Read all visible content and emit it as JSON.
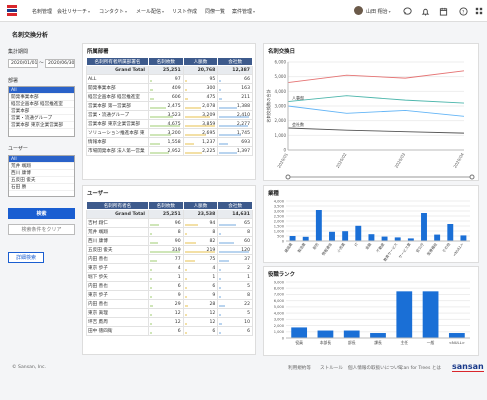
{
  "nav": {
    "items": [
      {
        "label": "名刺管理",
        "dropdown": false
      },
      {
        "label": "会社リサーチ",
        "dropdown": true
      },
      {
        "label": "コンタクト",
        "dropdown": true
      },
      {
        "label": "メール配信",
        "dropdown": true
      },
      {
        "label": "リスト作成",
        "dropdown": false
      },
      {
        "label": "同僚一覧",
        "dropdown": false
      },
      {
        "label": "案件管理",
        "dropdown": true
      }
    ],
    "user_name": "山田 翔治",
    "icons": [
      "chat-icon",
      "bell-icon",
      "calendar-icon",
      "help-icon",
      "grid-icon"
    ]
  },
  "page_title": "名刺交換分析",
  "sidebar": {
    "period_label": "集計期間",
    "date_from": "2020/01/01",
    "date_sep": "〜",
    "date_to": "2020/06/30",
    "dept_label": "部署",
    "dept_items": [
      {
        "label": "All",
        "selected": true
      },
      {
        "label": "開発事業本部",
        "selected": false
      },
      {
        "label": "経営企画本部 経営推進室",
        "selected": false
      },
      {
        "label": "営業本部",
        "selected": false
      },
      {
        "label": "営業・流通グループ",
        "selected": false
      },
      {
        "label": "営業本部 東京企業営業部",
        "selected": false
      }
    ],
    "user_label": "ユーザー",
    "user_items": [
      {
        "label": "All",
        "selected": true
      },
      {
        "label": "荒井 颯翔",
        "selected": false
      },
      {
        "label": "西川 康博",
        "selected": false
      },
      {
        "label": "五反田 俊夫",
        "selected": false
      },
      {
        "label": "石田 勝",
        "selected": false
      }
    ],
    "search_btn": "検索",
    "clear_btn": "検索条件をクリア",
    "detail_btn": "詳細検索"
  },
  "dept_table": {
    "title": "所属部署",
    "columns": [
      "名刺所有者所属部署名",
      "名刺枚数",
      "人脈数",
      "会社数"
    ],
    "total": {
      "name": "Grand Total",
      "cards": "25,251",
      "people": "20,768",
      "companies": "12,387"
    },
    "rows": [
      {
        "name": "ALL",
        "cards": "97",
        "people": "95",
        "companies": "66"
      },
      {
        "name": "開発事業本部",
        "cards": "409",
        "people": "300",
        "companies": "163"
      },
      {
        "name": "経営企画本部 経営推進室",
        "cards": "606",
        "people": "475",
        "companies": "211"
      },
      {
        "name": "営業本部 第一営業部",
        "cards": "2,475",
        "people": "2,078",
        "companies": "1,388"
      },
      {
        "name": "営業・流通グループ",
        "cards": "3,523",
        "people": "3,209",
        "companies": "2,410"
      },
      {
        "name": "営業本部 東京企業営業部",
        "cards": "4,675",
        "people": "3,859",
        "companies": "2,277"
      },
      {
        "name": "ソリューション推進本部 東",
        "cards": "3,200",
        "people": "2,695",
        "companies": "1,745"
      },
      {
        "name": "情報本部",
        "cards": "1,558",
        "people": "1,237",
        "companies": "693"
      },
      {
        "name": "市場開発本部 法人第一営業",
        "cards": "2,952",
        "people": "2,225",
        "companies": "1,397"
      }
    ]
  },
  "user_table": {
    "title": "ユーザー",
    "columns": [
      "名刺所有者名",
      "名刺枚数",
      "人脈数",
      "会社数"
    ],
    "total": {
      "name": "Grand Total",
      "cards": "25,251",
      "people": "23,538",
      "companies": "14,631"
    },
    "rows": [
      {
        "name": "吉村 翔仁",
        "cards": "96",
        "people": "94",
        "companies": "65"
      },
      {
        "name": "荒井 颯翔",
        "cards": "8",
        "people": "8",
        "companies": "8"
      },
      {
        "name": "西川 康博",
        "cards": "90",
        "people": "82",
        "companies": "60"
      },
      {
        "name": "五反田 俊夫",
        "cards": "319",
        "people": "219",
        "companies": "120"
      },
      {
        "name": "内田 善也",
        "cards": "77",
        "people": "75",
        "companies": "37"
      },
      {
        "name": "東京 歩子",
        "cards": "4",
        "people": "4",
        "companies": "2"
      },
      {
        "name": "堀下 歩矢",
        "cards": "1",
        "people": "1",
        "companies": "1"
      },
      {
        "name": "内田 善也",
        "cards": "6",
        "people": "6",
        "companies": "5"
      },
      {
        "name": "東京 歩子",
        "cards": "9",
        "people": "9",
        "companies": "8"
      },
      {
        "name": "内田 善也",
        "cards": "29",
        "people": "28",
        "companies": "22"
      },
      {
        "name": "東京 眞理",
        "cards": "12",
        "people": "12",
        "companies": "5"
      },
      {
        "name": "坪吉 鷹周",
        "cards": "12",
        "people": "12",
        "companies": "10"
      },
      {
        "name": "田中 徳四衛",
        "cards": "6",
        "people": "6",
        "companies": "6"
      }
    ]
  },
  "panel_titles": {
    "line": "名刺交換日",
    "industry": "業種",
    "rank": "役職ランク"
  },
  "chart_data": [
    {
      "type": "line",
      "title": "名刺交換日",
      "ylabel": "名刺交換数の合計",
      "x": [
        "2020/01",
        "2020/02",
        "2020/03",
        "2020/04"
      ],
      "y_ticks": [
        "6,000",
        "5,000",
        "4,000",
        "3,000",
        "2,000",
        "1,000",
        "0"
      ],
      "ylim": [
        0,
        6000
      ],
      "series": [
        {
          "name": "",
          "color": "#e57373",
          "values": [
            4600,
            5100,
            4900,
            5400
          ]
        },
        {
          "name": "人事部",
          "color": "#4db6ac",
          "values": [
            3300,
            3700,
            3400,
            3200
          ]
        },
        {
          "name": "",
          "color": "#64b5f6",
          "values": [
            3000,
            2500,
            2700,
            2300
          ]
        },
        {
          "name": "会社数",
          "color": "#555555",
          "values": [
            1500,
            1350,
            1250,
            1150
          ]
        }
      ]
    },
    {
      "type": "bar",
      "title": "業種",
      "categories": [
        "建設業",
        "製造業",
        "卸売",
        "情報通信",
        "小売業",
        "IT",
        "金融",
        "不動産",
        "教育サービス",
        "サービス業",
        "官公庁",
        "医療福祉",
        "その他",
        "<NULL>"
      ],
      "values": [
        500,
        420,
        3100,
        920,
        980,
        1520,
        680,
        440,
        360,
        260,
        2800,
        640,
        1700,
        560
      ],
      "y_ticks": [
        "4,000",
        "3,500",
        "3,000",
        "2,500",
        "2,000",
        "1,500",
        "1,000",
        "500",
        "0"
      ],
      "ylim": [
        0,
        4000
      ],
      "color": "#1a6fd6"
    },
    {
      "type": "bar",
      "title": "役職ランク",
      "categories": [
        "役員",
        "本部長",
        "部長",
        "課長",
        "主任",
        "一般",
        "<NULL>"
      ],
      "values": [
        1700,
        1200,
        1200,
        800,
        7500,
        7500,
        800
      ],
      "y_ticks": [
        "9,000",
        "8,000",
        "7,000",
        "6,000",
        "5,000",
        "4,000",
        "3,000",
        "2,000",
        "1,000",
        "0"
      ],
      "ylim": [
        0,
        9000
      ],
      "color": "#1a6fd6"
    }
  ],
  "footer": {
    "copyright": "© Sansan, Inc.",
    "links": [
      "利用規約等",
      "ストルール",
      "個人情報の取扱いについて",
      "Scan for Trees とは"
    ],
    "brand": "sansan"
  }
}
